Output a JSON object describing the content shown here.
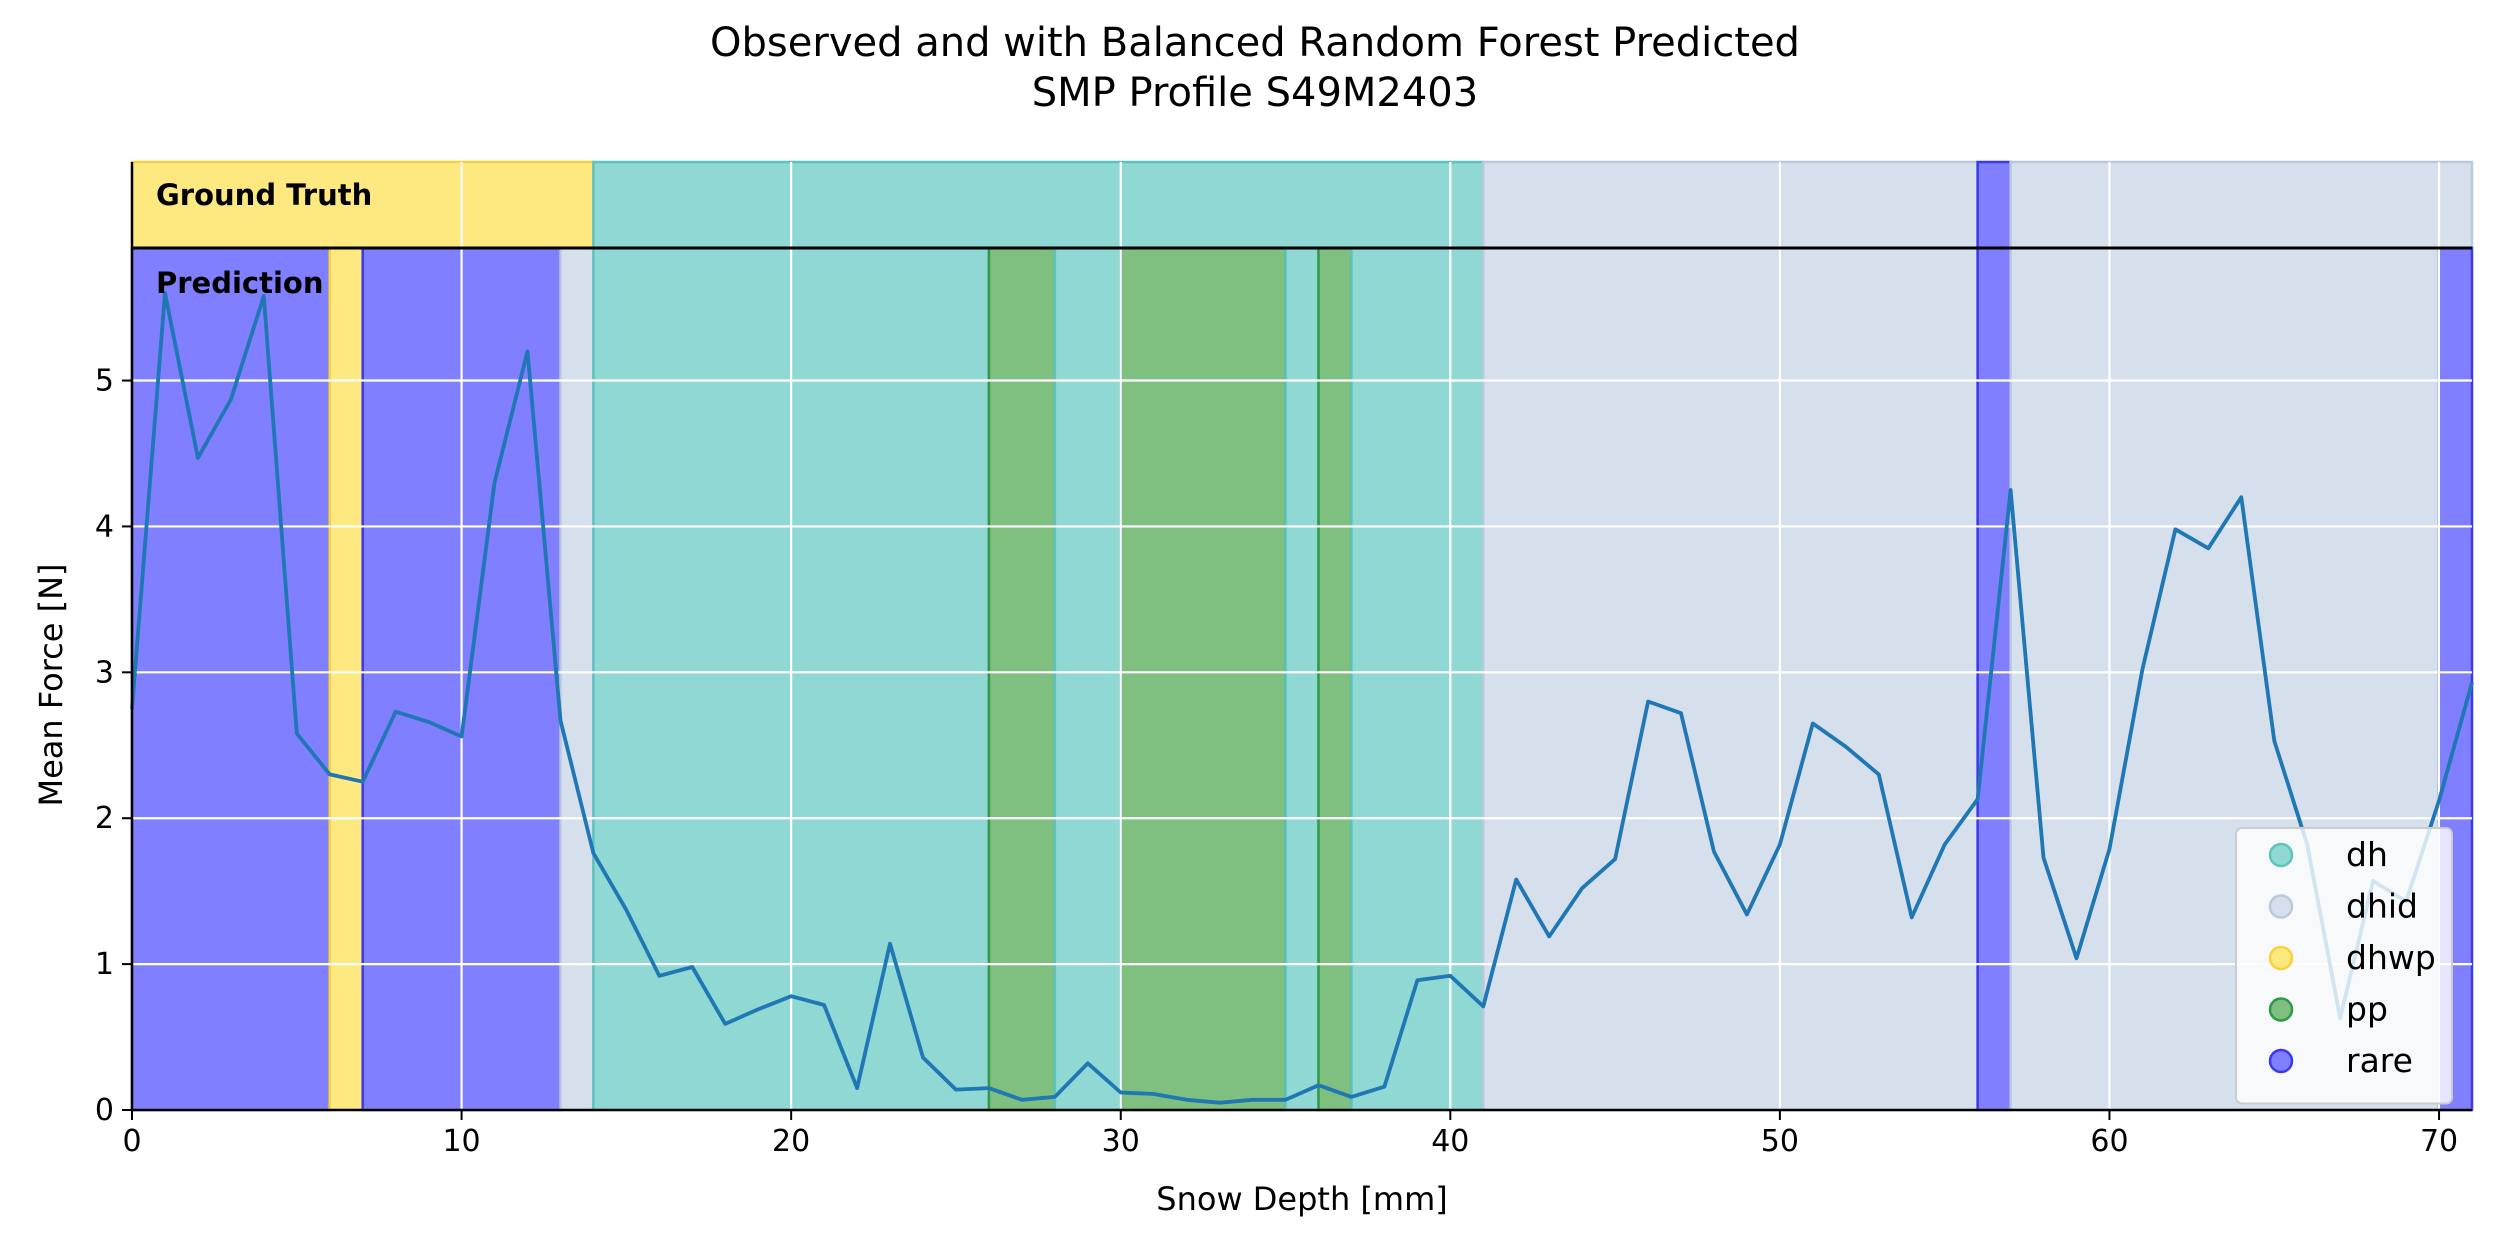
{
  "chart_data": {
    "type": "line",
    "title": "Observed and with Balanced Random Forest Predicted",
    "subtitle": "SMP Profile S49M2403",
    "xlabel": "Snow Depth [mm]",
    "ylabel": "Mean Force [N]",
    "xlim": [
      0,
      71
    ],
    "ylim": [
      0,
      5.6
    ],
    "x_ticks": [
      0,
      10,
      20,
      30,
      40,
      50,
      60,
      70
    ],
    "y_ticks": [
      0,
      1,
      2,
      3,
      4,
      5
    ],
    "grid": true,
    "legend_position": "lower-right",
    "series": [
      {
        "x": [
          0,
          1,
          2,
          3,
          4,
          5,
          6,
          7,
          8,
          9,
          10,
          11,
          12,
          13,
          14,
          15,
          16,
          17,
          18,
          19,
          20,
          21,
          22,
          23,
          24,
          25,
          26,
          27,
          28,
          29,
          30,
          31,
          32,
          33,
          34,
          35,
          36,
          37,
          38,
          39,
          40,
          41,
          42,
          43,
          44,
          45,
          46,
          47,
          48,
          49,
          50,
          51,
          52,
          53,
          54,
          55,
          56,
          57,
          58,
          59,
          60,
          61,
          62,
          63,
          64,
          65,
          66,
          67,
          68,
          69,
          70,
          71
        ],
        "y": [
          2.75,
          5.6,
          4.47,
          4.87,
          5.58,
          2.58,
          2.3,
          2.25,
          2.73,
          2.66,
          2.56,
          4.3,
          5.2,
          2.67,
          1.76,
          1.37,
          0.92,
          0.98,
          0.59,
          0.69,
          0.78,
          0.72,
          0.15,
          1.14,
          0.36,
          0.14,
          0.15,
          0.07,
          0.09,
          0.32,
          0.12,
          0.11,
          0.07,
          0.05,
          0.07,
          0.07,
          0.17,
          0.09,
          0.16,
          0.89,
          0.92,
          0.71,
          1.58,
          1.19,
          1.52,
          1.72,
          2.8,
          2.72,
          1.77,
          1.34,
          1.82,
          2.65,
          2.49,
          2.3,
          1.32,
          1.82,
          2.13,
          4.25,
          1.73,
          1.04,
          1.79,
          3.02,
          3.98,
          3.85,
          4.2,
          2.53,
          1.82,
          0.63,
          1.57,
          1.43,
          2.12,
          2.93
        ],
        "color": "#1f77b4"
      }
    ],
    "ground_truth_segments": [
      {
        "start": 0,
        "end": 14,
        "label": "dhwp"
      },
      {
        "start": 14,
        "end": 41,
        "label": "dh"
      },
      {
        "start": 41,
        "end": 56,
        "label": "dhid"
      },
      {
        "start": 56,
        "end": 57,
        "label": "rare"
      },
      {
        "start": 57,
        "end": 71,
        "label": "dhid"
      }
    ],
    "prediction_segments": [
      {
        "start": 0,
        "end": 6,
        "label": "rare"
      },
      {
        "start": 6,
        "end": 7,
        "label": "dhwp"
      },
      {
        "start": 7,
        "end": 13,
        "label": "rare"
      },
      {
        "start": 13,
        "end": 14,
        "label": "dhid"
      },
      {
        "start": 14,
        "end": 26,
        "label": "dh"
      },
      {
        "start": 26,
        "end": 28,
        "label": "pp"
      },
      {
        "start": 28,
        "end": 30,
        "label": "dh"
      },
      {
        "start": 30,
        "end": 35,
        "label": "pp"
      },
      {
        "start": 35,
        "end": 36,
        "label": "dh"
      },
      {
        "start": 36,
        "end": 37,
        "label": "pp"
      },
      {
        "start": 37,
        "end": 41,
        "label": "dh"
      },
      {
        "start": 41,
        "end": 56,
        "label": "dhid"
      },
      {
        "start": 56,
        "end": 57,
        "label": "rare"
      },
      {
        "start": 57,
        "end": 70,
        "label": "dhid"
      },
      {
        "start": 70,
        "end": 71,
        "label": "rare"
      }
    ],
    "panel_labels": {
      "ground_truth": "Ground Truth",
      "prediction": "Prediction"
    },
    "legend": [
      {
        "label": "dh",
        "color": "#8fd8d4"
      },
      {
        "label": "dhid",
        "color": "#d6e0ec"
      },
      {
        "label": "dhwp",
        "color": "#fee880"
      },
      {
        "label": "pp",
        "color": "#7fbf7f"
      },
      {
        "label": "rare",
        "color": "#807fff"
      }
    ],
    "colors": {
      "dh": "#8fd8d4",
      "dhid": "#d6e0ec",
      "dhwp": "#fee880",
      "pp": "#7fbf7f",
      "rare": "#807fff",
      "line": "#1f77b4"
    },
    "edge_colors": {
      "dh": "#5cc3be",
      "dhid": "#b9c8dc",
      "dhwp": "#f7d23a",
      "pp": "#2e9a44",
      "rare": "#3a39f0"
    }
  }
}
